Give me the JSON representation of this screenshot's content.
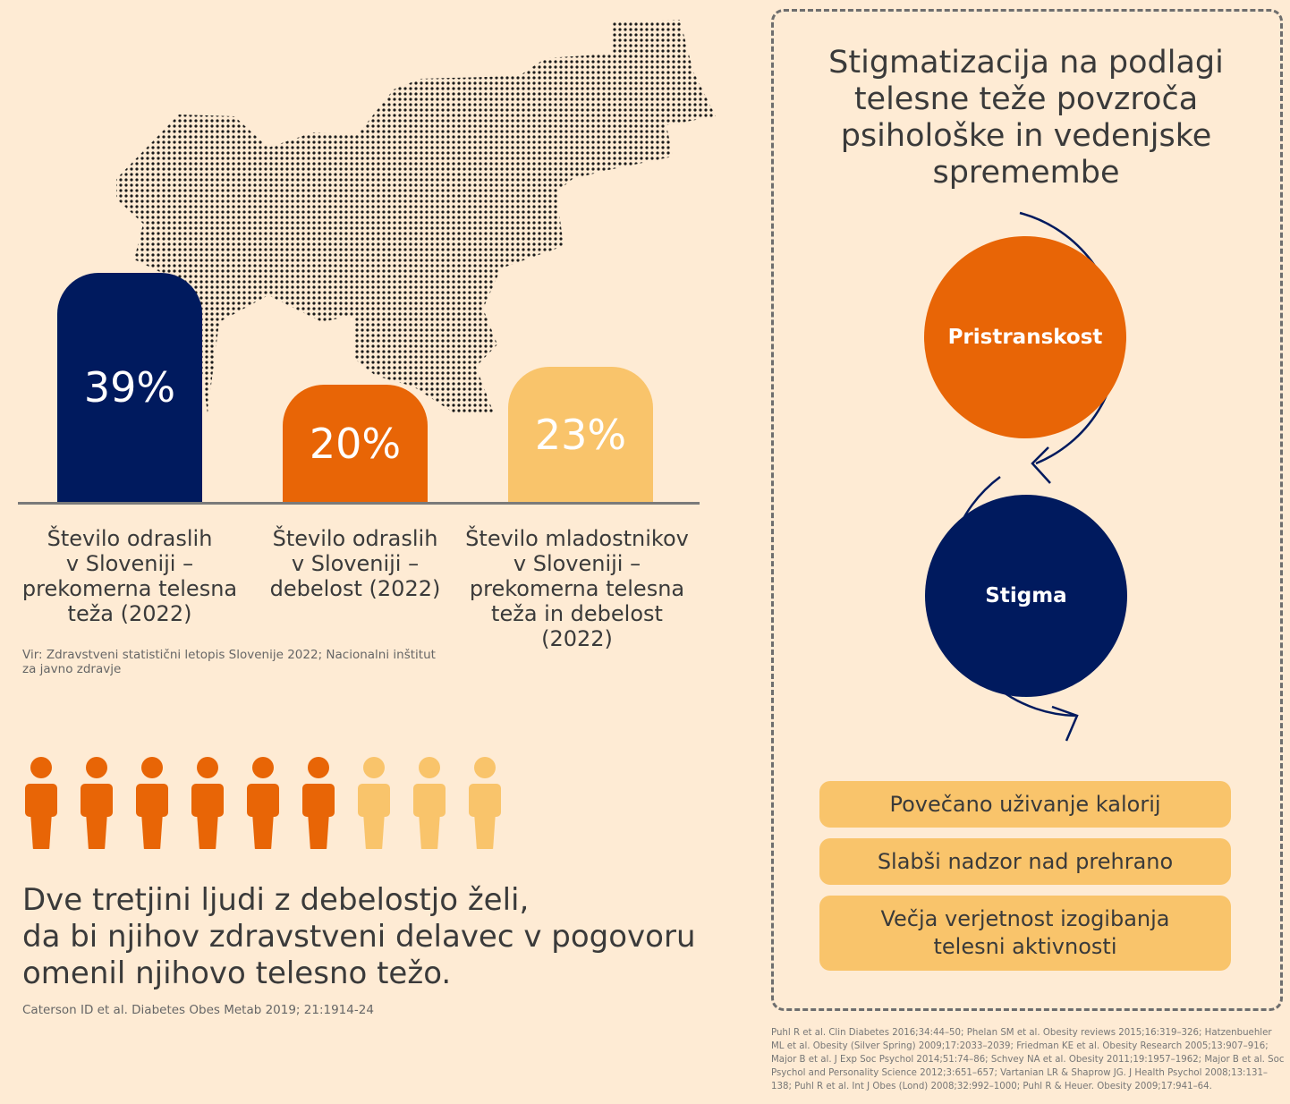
{
  "colors": {
    "navy": "#001A5E",
    "orange": "#E86506",
    "light_orange": "#F9C46B",
    "background": "#FEEBD4"
  },
  "chart_data": {
    "type": "bar",
    "categories": [
      "Število odraslih v Sloveniji – prekomerna telesna teža (2022)",
      "Število odraslih v Sloveniji – debelost (2022)",
      "Število mladostnikov v Sloveniji – prekomerna telesna teža in debelost (2022)"
    ],
    "values": [
      39,
      20,
      23
    ],
    "value_labels": [
      "39%",
      "20%",
      "23%"
    ],
    "unit": "%"
  },
  "bar_labels": [
    [
      "Število odraslih",
      "v Sloveniji –",
      "prekomerna telesna",
      "teža (2022)"
    ],
    [
      "Število odraslih",
      "v Sloveniji –",
      "debelost (2022)"
    ],
    [
      "Število mladostnikov",
      "v Sloveniji –",
      "prekomerna telesna",
      "teža in debelost",
      "(2022)"
    ]
  ],
  "source": "Vir: Zdravstveni statistični letopis Slovenije 2022; Nacionalni inštitut za javno zdravje",
  "people": {
    "highlighted": 6,
    "total": 9
  },
  "quote": [
    "Dve tretjini ljudi z debelostjo želi,",
    "da bi njihov zdravstveni delavec v pogovoru",
    "omenil njihovo telesno težo."
  ],
  "quote_citation": "Caterson ID et al. Diabetes Obes Metab 2019; 21:1914-24",
  "panel": {
    "title": [
      "Stigmatizacija na podlagi",
      "telesne teže povzroča",
      "psihološke in vedenjske",
      "spremembe"
    ],
    "cycle": [
      "Pristranskost",
      "Stigma"
    ],
    "effects": [
      "Povečano uživanje kalorij",
      "Slabši nadzor nad prehrano",
      "Večja verjetnost izogibanja telesni aktivnosti"
    ]
  },
  "references": "Puhl R et al. Clin Diabetes 2016;34:44–50; Phelan SM et al. Obesity reviews 2015;16:319–326; Hatzenbuehler ML et al. Obesity (Silver Spring) 2009;17:2033–2039; Friedman KE et al. Obesity Research 2005;13:907–916; Major B et al. J Exp Soc Psychol 2014;51:74–86; Schvey NA et al. Obesity 2011;19:1957–1962; Major B et al. Soc Psychol and Personality Science 2012;3:651–657; Vartanian LR & Shaprow JG. J Health Psychol 2008;13:131–138; Puhl R et al. Int J Obes (Lond) 2008;32:992–1000; Puhl R & Heuer. Obesity 2009;17:941–64."
}
